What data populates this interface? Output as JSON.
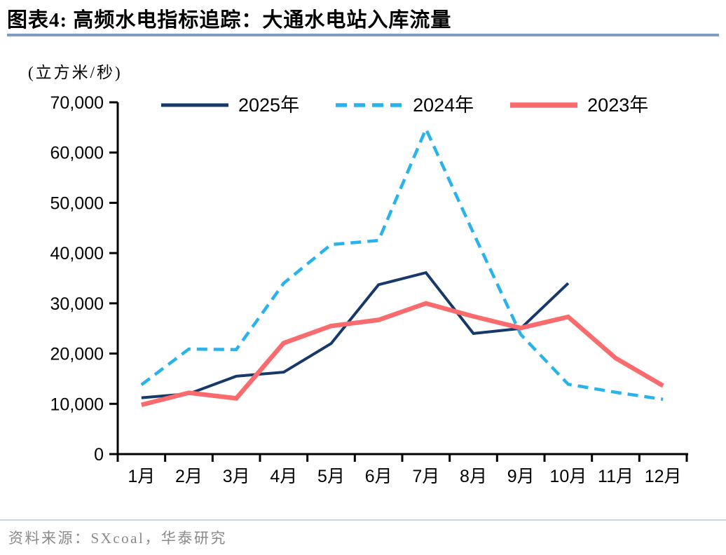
{
  "title": "图表4:  高频水电指标追踪：大通水电站入库流量",
  "source": "资料来源：SXcoal，华泰研究",
  "colors": {
    "title_rule": "#7e9dc0",
    "source_rule": "#ccd6e2",
    "source_text": "#8a8a8a",
    "axis": "#000000",
    "series_2025": "#17386b",
    "series_2024": "#29b3ea",
    "series_2023": "#fa6b6d"
  },
  "chart_data": {
    "type": "line",
    "title": "图表4:  高频水电指标追踪：大通水电站入库流量",
    "ylabel": "(立方米/秒)",
    "xlabel": "",
    "ylim": [
      0,
      70000
    ],
    "ytick_step": 10000,
    "grid": false,
    "legend_position": "top",
    "categories": [
      "1月",
      "2月",
      "3月",
      "4月",
      "5月",
      "6月",
      "7月",
      "8月",
      "9月",
      "10月",
      "11月",
      "12月"
    ],
    "series": [
      {
        "name": "2025年",
        "color": "#17386b",
        "style": "solid",
        "width": 4,
        "values": [
          11200,
          12000,
          15500,
          16300,
          22000,
          33700,
          36100,
          24000,
          25000,
          34000,
          null,
          null
        ]
      },
      {
        "name": "2024年",
        "color": "#29b3ea",
        "style": "dashed",
        "width": 4.5,
        "values": [
          13800,
          20900,
          20800,
          34000,
          41700,
          42500,
          64700,
          44000,
          23800,
          13900,
          12300,
          10900
        ]
      },
      {
        "name": "2023年",
        "color": "#fa6b6d",
        "style": "solid",
        "width": 6.5,
        "values": [
          9800,
          12200,
          11100,
          22100,
          25500,
          26700,
          30000,
          27400,
          25100,
          27300,
          19100,
          13600
        ]
      }
    ]
  }
}
